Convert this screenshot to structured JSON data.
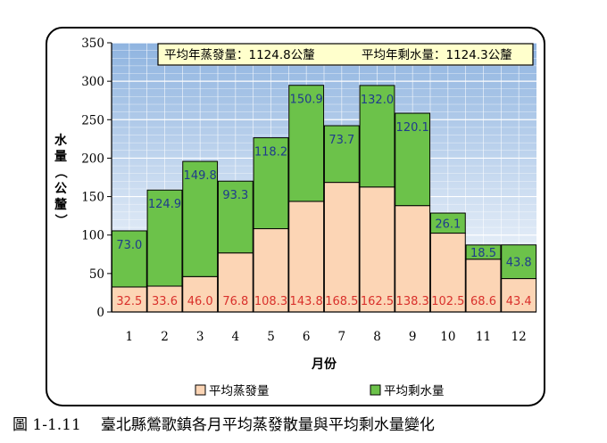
{
  "caption": {
    "figure_no": "圖 1-1.11",
    "text": "臺北縣鶯歌鎮各月平均蒸發散量與平均剩水量變化"
  },
  "chart_data": {
    "type": "bar",
    "stacked": true,
    "categories": [
      "1",
      "2",
      "3",
      "4",
      "5",
      "6",
      "7",
      "8",
      "9",
      "10",
      "11",
      "12"
    ],
    "series": [
      {
        "name": "平均蒸發量",
        "color": "#fcd5b5",
        "label_color": "#d9302b",
        "values": [
          32.5,
          33.6,
          46.0,
          76.8,
          108.3,
          143.8,
          168.5,
          162.5,
          138.3,
          102.5,
          68.6,
          43.4
        ]
      },
      {
        "name": "平均剩水量",
        "color": "#6cc24a",
        "label_color": "#1f3b8c",
        "values": [
          73.0,
          124.9,
          149.8,
          93.3,
          118.2,
          150.9,
          73.7,
          132.0,
          120.1,
          26.1,
          18.5,
          43.8
        ]
      }
    ],
    "xlabel": "月份",
    "ylabel": "水量（公釐）",
    "ylim": [
      0,
      350
    ],
    "yticks": [
      0,
      50,
      100,
      150,
      200,
      250,
      300,
      350
    ],
    "grid": true,
    "legend_position": "bottom",
    "annotations": {
      "evap_total": "平均年蒸發量：1124.8公釐",
      "water_total": "平均年剩水量：1124.3公釐"
    }
  }
}
